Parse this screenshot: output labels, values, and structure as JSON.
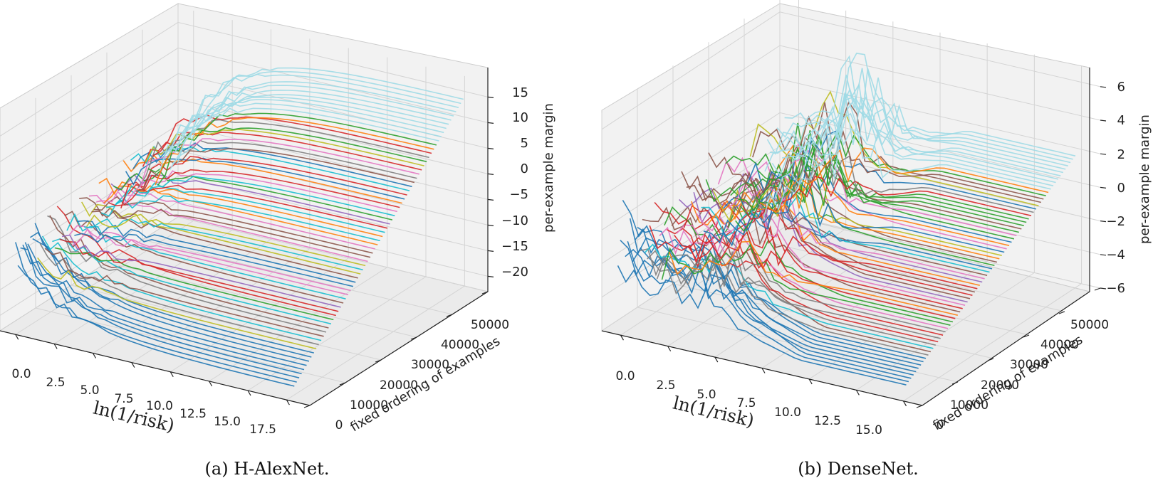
{
  "chart_data": [
    {
      "type": "3d-line",
      "caption": "(a) H-AlexNet.",
      "xlabel": "ln(1/risk)",
      "ylabel": "fixed ordering of examples",
      "zlabel": "per-example margin",
      "x_ticks": [
        "0.0",
        "2.5",
        "5.0",
        "7.5",
        "10.0",
        "12.5",
        "15.0",
        "17.5"
      ],
      "y_ticks": [
        "0",
        "10000",
        "20000",
        "30000",
        "40000",
        "50000"
      ],
      "z_ticks": [
        "15",
        "10",
        "5",
        "0",
        "−5",
        "−10",
        "−15",
        "−20"
      ],
      "xlim": [
        -1,
        19
      ],
      "ylim": [
        0,
        50000
      ],
      "zlim": [
        -23,
        18
      ],
      "start_margin_range": [
        -12,
        -4
      ],
      "final_margin_range": [
        -20,
        15
      ],
      "n_series_shown": 70
    },
    {
      "type": "3d-line",
      "caption": "(b) DenseNet.",
      "xlabel": "ln(1/risk)",
      "ylabel": "fixed ordering of examples",
      "zlabel": "per-example margin",
      "x_ticks": [
        "0.0",
        "2.5",
        "5.0",
        "7.5",
        "10.0",
        "12.5",
        "15.0"
      ],
      "y_ticks": [
        "0",
        "10000",
        "20000",
        "30000",
        "40000",
        "50000"
      ],
      "z_ticks": [
        "6",
        "4",
        "2",
        "0",
        "−2",
        "−4",
        "−6"
      ],
      "xlim": [
        -1,
        16
      ],
      "ylim": [
        0,
        50000
      ],
      "zlim": [
        -6,
        7
      ],
      "start_margin_range": [
        -4,
        1
      ],
      "final_margin_range": [
        -5,
        2
      ],
      "n_series_shown": 70
    }
  ],
  "palette": [
    "#1f77b4",
    "#ff7f0e",
    "#2ca02c",
    "#d62728",
    "#9467bd",
    "#8c564b",
    "#e377c2",
    "#7f7f7f",
    "#bcbd22",
    "#17becf",
    "#9edae5"
  ]
}
